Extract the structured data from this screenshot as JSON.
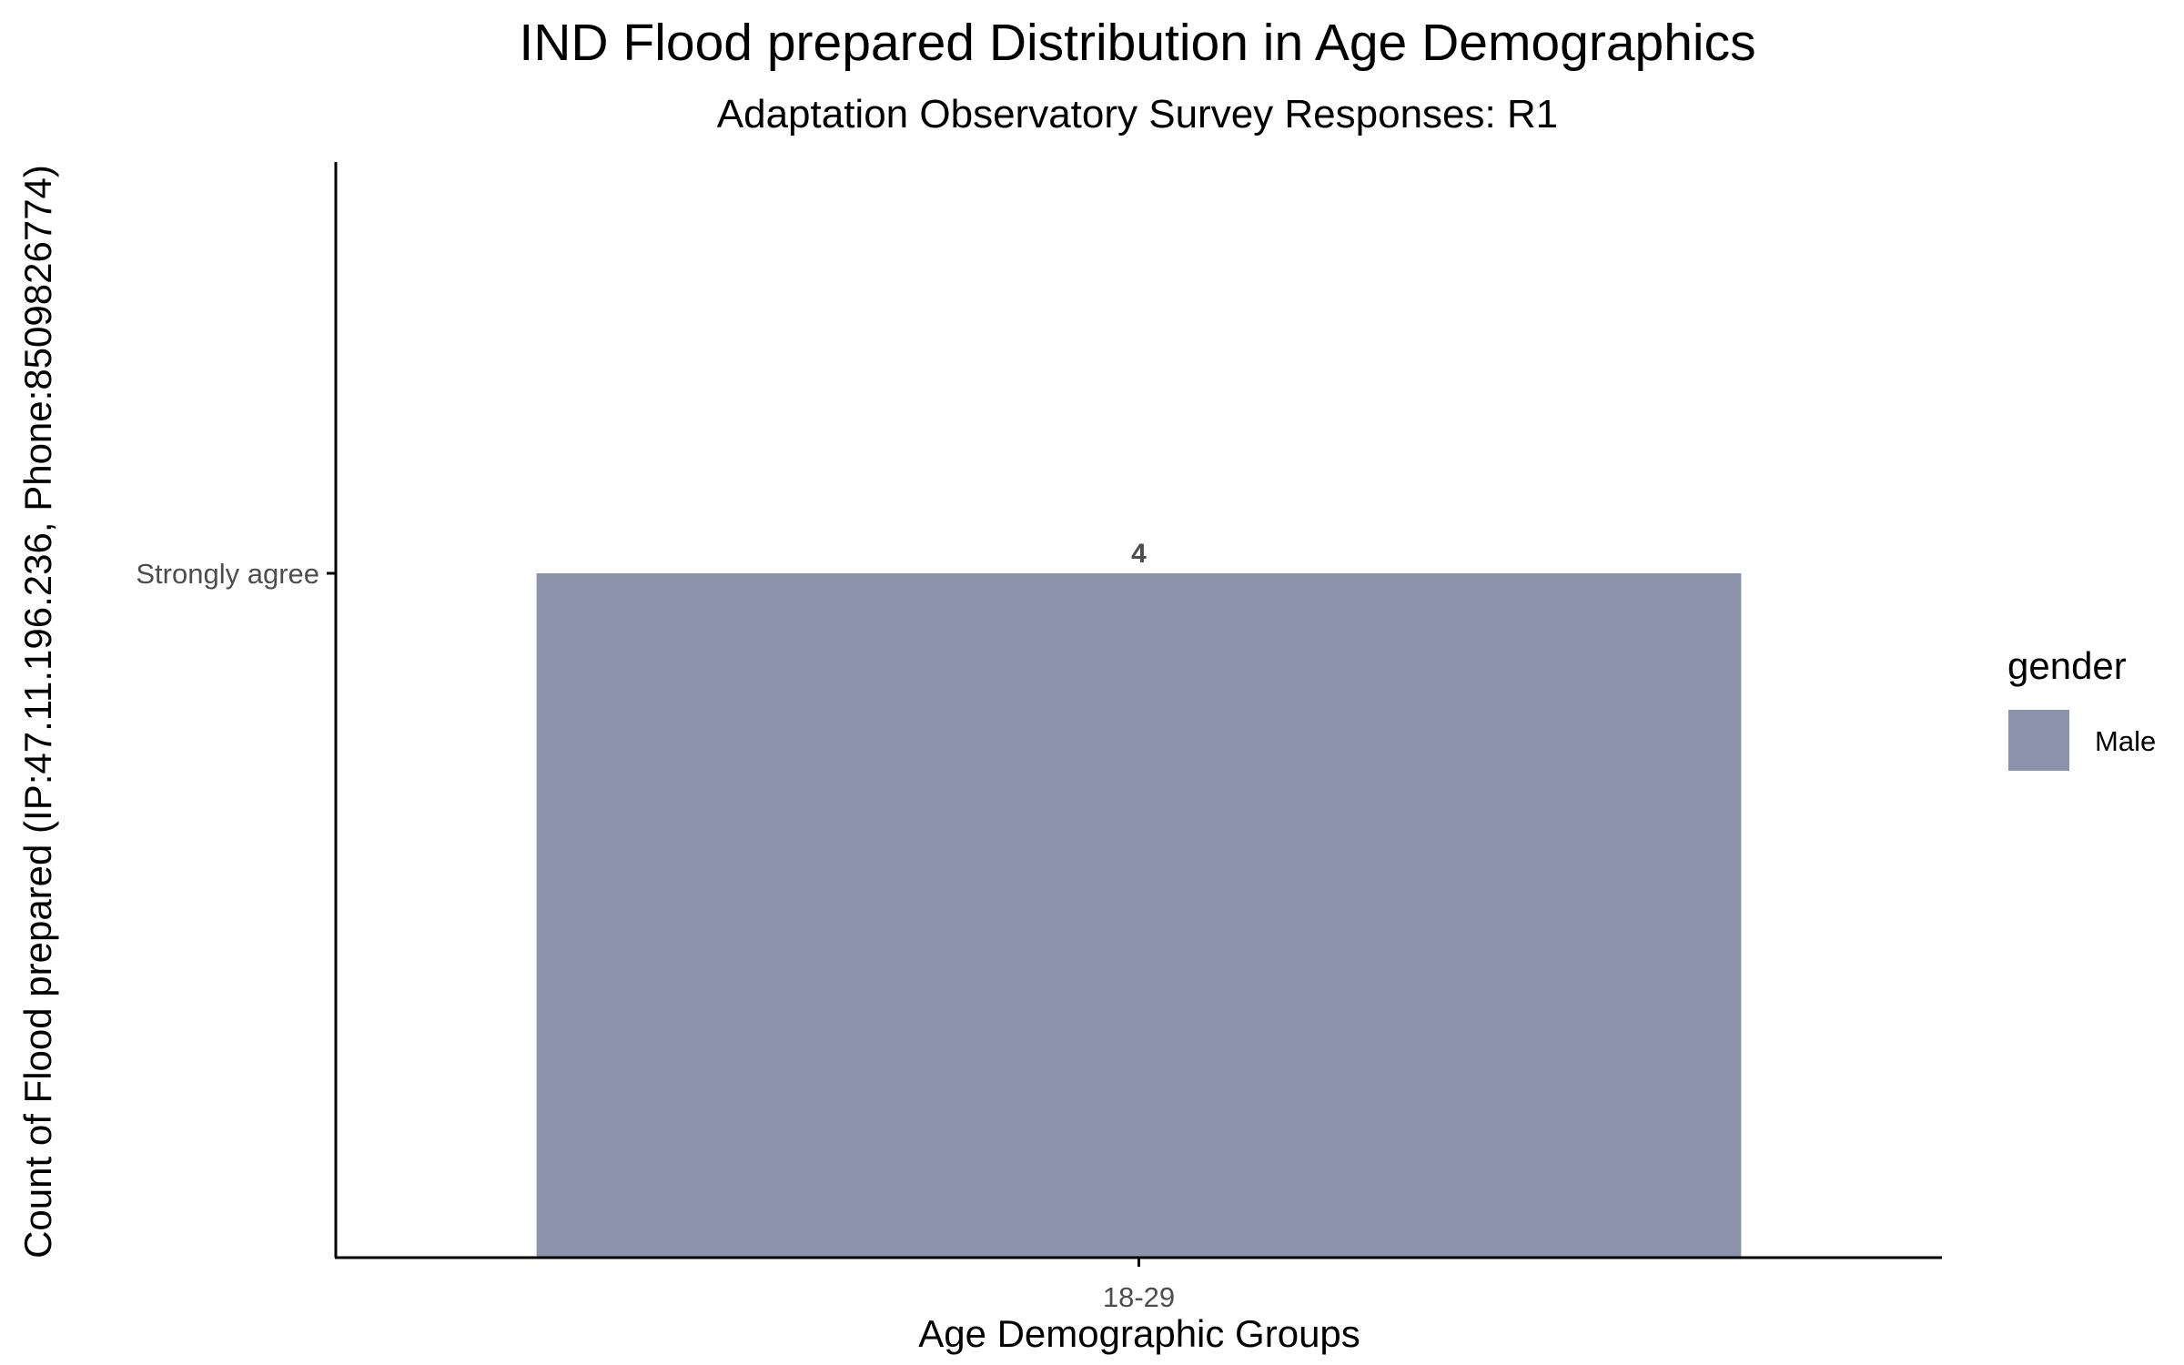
{
  "chart_data": {
    "type": "bar",
    "title": "IND Flood prepared Distribution in Age Demographics",
    "subtitle": "Adaptation Observatory Survey Responses: R1",
    "xlabel": "Age Demographic Groups",
    "ylabel": "Count of Flood prepared (IP:47.11.196.236, Phone:8509826774)",
    "categories": [
      "18-29"
    ],
    "y_tick_labels": [
      "Strongly agree"
    ],
    "series": [
      {
        "name": "Male",
        "values": [
          "Strongly agree"
        ],
        "labels": [
          "4"
        ],
        "color": "#8b93ab"
      }
    ],
    "legend": {
      "title": "gender",
      "position": "right"
    },
    "grid": false
  }
}
